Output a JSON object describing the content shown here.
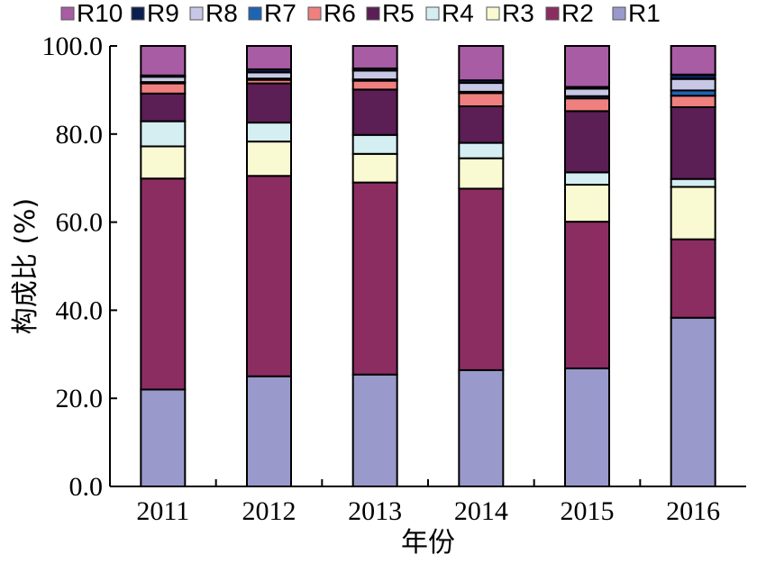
{
  "chart_data": {
    "type": "bar",
    "stacked": true,
    "categories": [
      "2011",
      "2012",
      "2013",
      "2014",
      "2015",
      "2016"
    ],
    "xlabel": "年份",
    "ylabel": "构成比 (%)",
    "ylim": [
      0,
      100
    ],
    "yticks": [
      "0.0",
      "20.0",
      "40.0",
      "60.0",
      "80.0",
      "100.0"
    ],
    "legend_position": "top",
    "grid": false,
    "series": [
      {
        "name": "R1",
        "color": "#9999cc",
        "values": [
          22.0,
          25.0,
          25.4,
          26.4,
          26.8,
          38.3
        ]
      },
      {
        "name": "R2",
        "color": "#8c2d62",
        "values": [
          47.9,
          45.5,
          43.6,
          41.2,
          33.3,
          17.8
        ]
      },
      {
        "name": "R3",
        "color": "#fafad2",
        "values": [
          7.3,
          7.8,
          6.5,
          6.9,
          8.4,
          11.9
        ]
      },
      {
        "name": "R4",
        "color": "#d4eef2",
        "values": [
          5.7,
          4.3,
          4.3,
          3.5,
          2.8,
          1.8
        ]
      },
      {
        "name": "R5",
        "color": "#5b1e55",
        "values": [
          6.3,
          8.9,
          10.3,
          8.3,
          13.9,
          16.3
        ]
      },
      {
        "name": "R6",
        "color": "#f08080",
        "values": [
          2.3,
          0.8,
          2.0,
          3.0,
          2.9,
          2.6
        ]
      },
      {
        "name": "R7",
        "color": "#1e64b4",
        "values": [
          0.3,
          0.3,
          0.3,
          0.3,
          0.5,
          1.2
        ]
      },
      {
        "name": "R8",
        "color": "#c8c8e6",
        "values": [
          1.2,
          1.4,
          2.0,
          2.0,
          1.7,
          2.6
        ]
      },
      {
        "name": "R9",
        "color": "#0a1e50",
        "values": [
          0.3,
          0.7,
          0.5,
          0.6,
          0.4,
          1.0
        ]
      },
      {
        "name": "R10",
        "color": "#a85ca4",
        "values": [
          6.7,
          5.3,
          5.1,
          7.8,
          9.3,
          6.5
        ]
      }
    ]
  }
}
